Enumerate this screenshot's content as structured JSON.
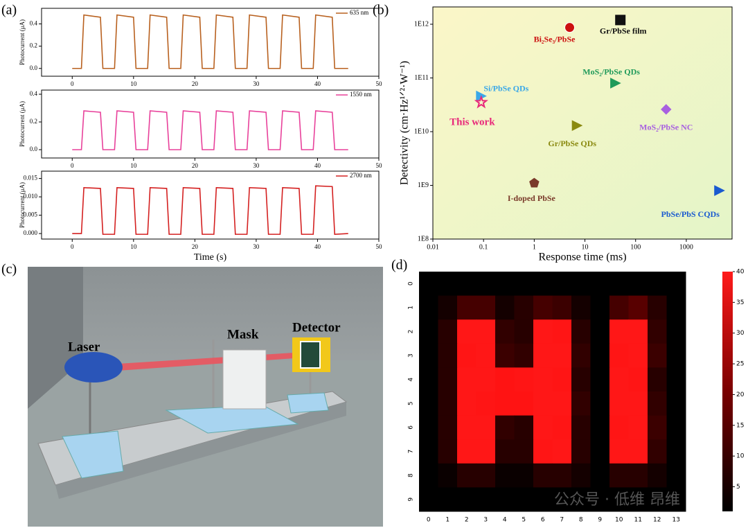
{
  "panels": [
    "(a)",
    "(b)",
    "(c)",
    "(d)"
  ],
  "illustration": {
    "labels": [
      "Laser",
      "Mask",
      "Detector"
    ]
  },
  "watermark": "公众号 · 低维 昂维",
  "chart_data": [
    {
      "type": "line",
      "ylabel": "Photocurrent (μA)",
      "xlim": [
        -5,
        50
      ],
      "xticks": [
        0,
        10,
        20,
        30,
        40,
        50
      ],
      "ylim": [
        -0.07,
        0.54
      ],
      "yticks": [
        {
          "value": 0,
          "label": "0.0"
        },
        {
          "value": 0.2,
          "label": "0.2"
        },
        {
          "value": 0.4,
          "label": "0.4"
        }
      ],
      "series": [
        {
          "name": "635 nm",
          "color": "#b8601e",
          "x": [
            0,
            1.5,
            1.9,
            4.6,
            5.0,
            6.9,
            7.3,
            10.0,
            10.4,
            12.3,
            12.7,
            15.4,
            15.8,
            17.7,
            18.1,
            20.8,
            21.2,
            23.1,
            23.5,
            26.2,
            26.6,
            28.5,
            28.9,
            31.6,
            32.0,
            33.9,
            34.3,
            37.0,
            37.4,
            39.3,
            39.7,
            42.4,
            42.8,
            45
          ],
          "values": [
            0,
            0,
            0.48,
            0.46,
            0,
            0,
            0.48,
            0.46,
            0,
            0,
            0.48,
            0.46,
            0,
            0,
            0.48,
            0.46,
            0,
            0,
            0.48,
            0.46,
            0,
            0,
            0.48,
            0.46,
            0,
            0,
            0.48,
            0.46,
            0,
            0,
            0.48,
            0.46,
            0,
            0
          ]
        }
      ]
    },
    {
      "type": "line",
      "ylabel": "Photocurrent (μA)",
      "xlim": [
        -5,
        50
      ],
      "xticks": [
        0,
        10,
        20,
        30,
        40,
        50
      ],
      "ylim": [
        -0.06,
        0.43
      ],
      "yticks": [
        {
          "value": 0,
          "label": "0.0"
        },
        {
          "value": 0.2,
          "label": "0.2"
        },
        {
          "value": 0.4,
          "label": "0.4"
        }
      ],
      "series": [
        {
          "name": "1550 nm",
          "color": "#e8409a",
          "x": [
            0,
            1.5,
            1.9,
            4.6,
            5.0,
            6.9,
            7.3,
            10.0,
            10.4,
            12.3,
            12.7,
            15.4,
            15.8,
            17.7,
            18.1,
            20.8,
            21.2,
            23.1,
            23.5,
            26.2,
            26.6,
            28.5,
            28.9,
            31.6,
            32.0,
            33.9,
            34.3,
            37.0,
            37.4,
            39.3,
            39.7,
            42.4,
            42.8,
            45
          ],
          "values": [
            0,
            0,
            0.28,
            0.27,
            0,
            0,
            0.28,
            0.27,
            0,
            0,
            0.28,
            0.27,
            0,
            0,
            0.28,
            0.27,
            0,
            0,
            0.28,
            0.27,
            0,
            0,
            0.28,
            0.27,
            0,
            0,
            0.28,
            0.27,
            0,
            0,
            0.28,
            0.27,
            0,
            0
          ]
        }
      ]
    },
    {
      "type": "line",
      "ylabel": "Photocurrent (μA)",
      "xlabel": "Time (s)",
      "xlim": [
        -5,
        50
      ],
      "xticks": [
        0,
        10,
        20,
        30,
        40,
        50
      ],
      "ylim": [
        -0.0015,
        0.017
      ],
      "yticks": [
        {
          "value": 0,
          "label": "0.000"
        },
        {
          "value": 0.005,
          "label": "0.005"
        },
        {
          "value": 0.01,
          "label": "0.010"
        },
        {
          "value": 0.015,
          "label": "0.015"
        }
      ],
      "series": [
        {
          "name": "2700 nm",
          "color": "#d42020",
          "x": [
            0,
            1.5,
            1.9,
            4.6,
            5.0,
            6.9,
            7.3,
            10.0,
            10.4,
            12.3,
            12.7,
            15.4,
            15.8,
            17.7,
            18.1,
            20.8,
            21.2,
            23.1,
            23.5,
            26.2,
            26.6,
            28.5,
            28.9,
            31.6,
            32.0,
            33.9,
            34.3,
            37.0,
            37.4,
            39.3,
            39.7,
            42.4,
            42.8,
            45
          ],
          "values": [
            0,
            0,
            0.0125,
            0.0123,
            -0.0002,
            -0.0002,
            0.0125,
            0.0123,
            -0.0002,
            -0.0002,
            0.0125,
            0.0123,
            -0.0002,
            -0.0002,
            0.0125,
            0.0123,
            -0.0002,
            -0.0002,
            0.0125,
            0.0123,
            -0.0002,
            -0.0002,
            0.0125,
            0.0123,
            -0.0002,
            -0.0002,
            0.0125,
            0.0123,
            -0.0002,
            -0.0002,
            0.013,
            0.0128,
            -0.0002,
            0
          ]
        }
      ]
    },
    {
      "type": "scatter",
      "xlabel": "Response time (ms)",
      "ylabel": "Detectivity (cm·Hz¹ᐟ²·W⁻¹)",
      "xscale": "log",
      "yscale": "log",
      "xlim": [
        0.01,
        8000
      ],
      "ylim": [
        100000000,
        2100000000000
      ],
      "xticks": [
        0.01,
        0.1,
        1,
        10,
        100,
        1000
      ],
      "yticks": [
        {
          "value": 100000000,
          "label": "1E8"
        },
        {
          "value": 1000000000,
          "label": "1E9"
        },
        {
          "value": 10000000000,
          "label": "1E10"
        },
        {
          "value": 100000000000,
          "label": "1E11"
        },
        {
          "value": 1000000000000,
          "label": "1E12"
        }
      ],
      "series": [
        {
          "name": "Bi₂Se₃/PbSe",
          "color": "#cc1010",
          "marker": "circle",
          "x": [
            5
          ],
          "values": [
            870000000000
          ]
        },
        {
          "name": "Gr/PbSe film",
          "color": "#111111",
          "marker": "square",
          "x": [
            50
          ],
          "values": [
            1200000000000
          ]
        },
        {
          "name": "MoS₂/PbSe QDs",
          "color": "#1f9a5a",
          "marker": "triangle",
          "x": [
            40
          ],
          "values": [
            80000000000
          ]
        },
        {
          "name": "Si/PbSe QDs",
          "color": "#3aa8e8",
          "marker": "triangle",
          "x": [
            0.09
          ],
          "values": [
            46000000000
          ]
        },
        {
          "name": "This work",
          "color": "#e8287a",
          "marker": "star",
          "x": [
            0.09
          ],
          "values": [
            35000000000
          ]
        },
        {
          "name": "MoS₂/PbSe NC",
          "color": "#a860e0",
          "marker": "diamond",
          "x": [
            400
          ],
          "values": [
            26000000000
          ]
        },
        {
          "name": "Gr/PbSe QDs",
          "color": "#8a8a10",
          "marker": "triangle",
          "x": [
            7
          ],
          "values": [
            13000000000
          ]
        },
        {
          "name": "I-doped PbSe",
          "color": "#7a3a2a",
          "marker": "pentagon",
          "x": [
            1
          ],
          "values": [
            1100000000
          ]
        },
        {
          "name": "PbSe/PbS CQDs",
          "color": "#1a5ad0",
          "marker": "triangle",
          "x": [
            4500
          ],
          "values": [
            800000000
          ]
        }
      ]
    },
    {
      "type": "heatmap",
      "x": [
        0,
        1,
        2,
        3,
        4,
        5,
        6,
        7,
        8,
        9,
        10,
        11,
        12,
        13
      ],
      "y": [
        0,
        1,
        2,
        3,
        4,
        5,
        6,
        7,
        8,
        9
      ],
      "zlim": [
        1,
        40
      ],
      "zticks": [
        5,
        10,
        15,
        20,
        25,
        30,
        35,
        40
      ],
      "values": [
        [
          0,
          0,
          0,
          0,
          0,
          0,
          0,
          0,
          0,
          0,
          0,
          0,
          0,
          0
        ],
        [
          0,
          3,
          8,
          8,
          3,
          5,
          8,
          7,
          3,
          0,
          8,
          10,
          5,
          0
        ],
        [
          0,
          5,
          38,
          38,
          6,
          5,
          38,
          37,
          5,
          0,
          38,
          38,
          6,
          0
        ],
        [
          0,
          5,
          37,
          38,
          7,
          6,
          38,
          38,
          6,
          0,
          37,
          38,
          7,
          0
        ],
        [
          0,
          5,
          38,
          38,
          36,
          37,
          38,
          37,
          5,
          0,
          38,
          37,
          5,
          0
        ],
        [
          0,
          5,
          38,
          37,
          36,
          36,
          38,
          38,
          6,
          0,
          38,
          38,
          6,
          0
        ],
        [
          0,
          5,
          38,
          38,
          6,
          5,
          38,
          37,
          5,
          0,
          37,
          38,
          7,
          0
        ],
        [
          0,
          5,
          38,
          38,
          5,
          5,
          37,
          38,
          5,
          0,
          38,
          38,
          6,
          0
        ],
        [
          0,
          2,
          5,
          5,
          2,
          2,
          5,
          5,
          3,
          0,
          5,
          5,
          3,
          0
        ],
        [
          0,
          0,
          0,
          0,
          0,
          0,
          0,
          0,
          0,
          0,
          0,
          0,
          0,
          0
        ]
      ]
    }
  ]
}
